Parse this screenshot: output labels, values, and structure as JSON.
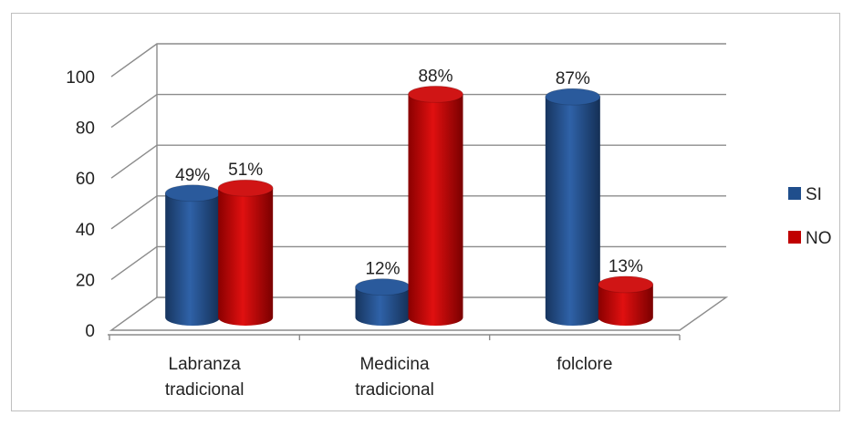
{
  "chart_data": {
    "type": "bar",
    "style": "3d-cylinder",
    "categories": [
      [
        "Labranza",
        "tradicional"
      ],
      [
        "Medicina",
        "tradicional"
      ],
      [
        "folclore"
      ]
    ],
    "series": [
      {
        "name": "SI",
        "color": "#1F4E8C",
        "values": [
          49,
          12,
          87
        ],
        "labels": [
          "49%",
          "12%",
          "87%"
        ]
      },
      {
        "name": "NO",
        "color": "#C00000",
        "values": [
          51,
          88,
          13
        ],
        "labels": [
          "51%",
          "88%",
          "13%"
        ]
      }
    ],
    "yticks": [
      0,
      20,
      40,
      60,
      80,
      100
    ],
    "ylim": [
      0,
      100
    ],
    "grid": true,
    "legend": "right"
  }
}
